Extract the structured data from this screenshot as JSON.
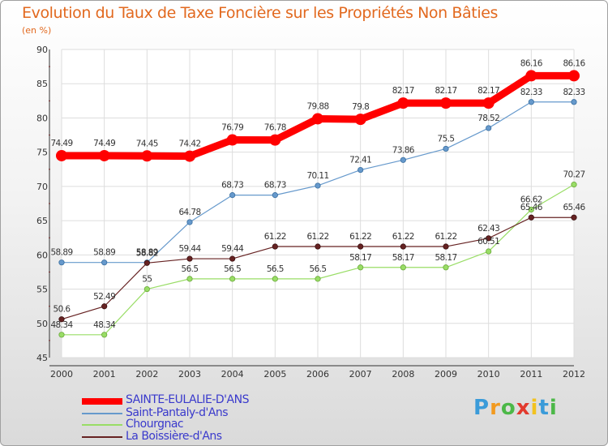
{
  "header": {
    "title": "Evolution du Taux de Taxe Foncière sur les Propriétés Non Bâties",
    "unit": "(en %)"
  },
  "chart_data": {
    "type": "line",
    "title": "Evolution du Taux de Taxe Foncière sur les Propriétés Non Bâties",
    "ylabel": "(en %)",
    "xlabel": "",
    "x": [
      "2000",
      "2001",
      "2002",
      "2003",
      "2004",
      "2005",
      "2006",
      "2007",
      "2008",
      "2009",
      "2010",
      "2011",
      "2012"
    ],
    "ylim": [
      45,
      90
    ],
    "yticks": [
      45,
      50,
      55,
      60,
      65,
      70,
      75,
      80,
      85,
      90
    ],
    "grid": true,
    "legend_position": "bottom-left",
    "series": [
      {
        "name": "SAINTE-EULALIE-D'ANS",
        "color": "#ff0000",
        "values": [
          74.49,
          74.49,
          74.45,
          74.42,
          76.79,
          76.78,
          79.88,
          79.8,
          82.17,
          82.17,
          82.17,
          86.16,
          86.16
        ]
      },
      {
        "name": "Saint-Pantaly-d'Ans",
        "color": "#6699cc",
        "values": [
          58.89,
          58.89,
          58.89,
          64.78,
          68.73,
          68.73,
          70.11,
          72.41,
          73.86,
          75.5,
          78.52,
          82.33,
          82.33
        ]
      },
      {
        "name": "Chourgnac",
        "color": "#99dd66",
        "values": [
          48.34,
          48.34,
          55,
          56.5,
          56.5,
          56.5,
          56.5,
          58.17,
          58.17,
          58.17,
          60.51,
          66.62,
          70.27
        ]
      },
      {
        "name": "La Boissière-d'Ans",
        "color": "#662222",
        "values": [
          50.6,
          52.49,
          58.82,
          59.44,
          59.44,
          61.22,
          61.22,
          61.22,
          61.22,
          61.22,
          62.43,
          65.46,
          65.46
        ]
      }
    ],
    "data_labels": [
      [
        "74.49",
        "74.49",
        "74.45",
        "74.42",
        "76.79",
        "76.78",
        "79.88",
        "79.8",
        "82.17",
        "82.17",
        "82.17",
        "86.16",
        "86.16"
      ],
      [
        "58.89",
        "58.89",
        "58.89",
        "64.78",
        "68.73",
        "68.73",
        "70.11",
        "72.41",
        "73.86",
        "75.5",
        "78.52",
        "82.33",
        "82.33"
      ],
      [
        "48.34",
        "48.34",
        "55",
        "56.5",
        "56.5",
        "56.5",
        "56.5",
        "58.17",
        "58.17",
        "58.17",
        "60.51",
        "66.62",
        "70.27"
      ],
      [
        "50.6",
        "52.49",
        "58.82",
        "59.44",
        "59.44",
        "61.22",
        "61.22",
        "61.22",
        "61.22",
        "61.22",
        "62.43",
        "65.46",
        "65.46"
      ]
    ]
  },
  "legend": {
    "items": [
      {
        "label": "SAINTE-EULALIE-D'ANS",
        "color": "#ff0000"
      },
      {
        "label": "Saint-Pantaly-d'Ans",
        "color": "#6699cc"
      },
      {
        "label": "Chourgnac",
        "color": "#99dd66"
      },
      {
        "label": "La Boissière-d'Ans",
        "color": "#662222"
      }
    ]
  },
  "logo": {
    "letters": [
      "P",
      "r",
      "o",
      "x",
      "i",
      "t",
      "i"
    ],
    "colors": [
      "#3a9bd9",
      "#f29a1f",
      "#4cb848",
      "#e23a2e",
      "#f2c21f",
      "#3a9bd9",
      "#4cb848"
    ]
  }
}
